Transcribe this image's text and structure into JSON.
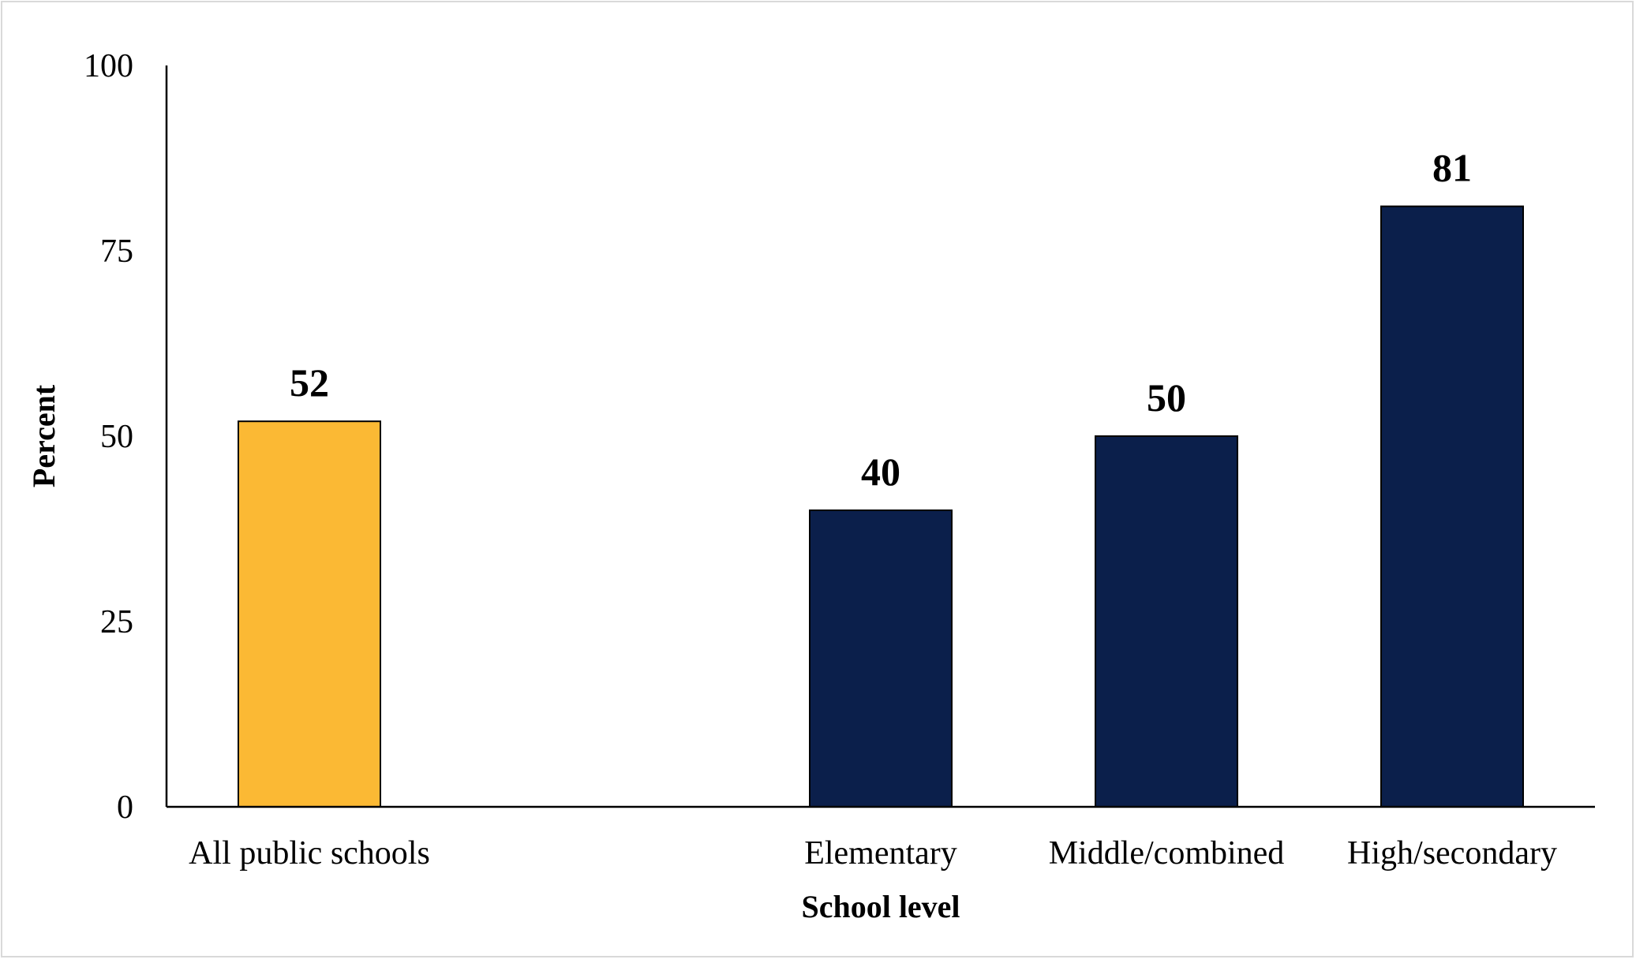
{
  "chart_data": {
    "type": "bar",
    "title": "",
    "xlabel": "School level",
    "ylabel": "Percent",
    "ylim": [
      0,
      100
    ],
    "yticks": [
      0,
      25,
      50,
      75,
      100
    ],
    "yticks_labels": [
      "0",
      "25",
      "50",
      "75",
      "100"
    ],
    "grid": false,
    "categories": [
      "All public schools",
      "Elementary",
      "Middle/combined",
      "High/secondary"
    ],
    "values": [
      52,
      40,
      50,
      81
    ],
    "value_labels": [
      "52",
      "40",
      "50",
      "81"
    ],
    "bar_colors": [
      "#FBB934",
      "#0B1F4B",
      "#0B1F4B",
      "#0B1F4B"
    ],
    "slots": [
      0,
      2,
      3,
      4
    ]
  },
  "colors": {
    "highlight": "#FBB934",
    "primary": "#0B1F4B",
    "axis": "#000000",
    "frame": "#d9d9d9"
  }
}
